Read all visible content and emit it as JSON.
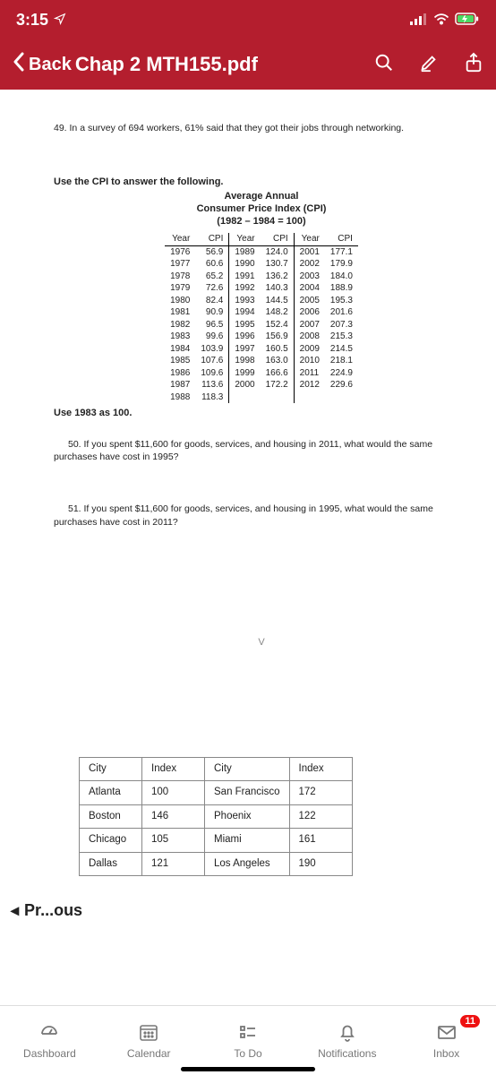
{
  "status": {
    "time": "3:15",
    "location_active": true
  },
  "nav": {
    "back_label": "Back",
    "title": "Chap 2 MTH155.pdf"
  },
  "doc": {
    "q49": "49. In a survey of 694 workers, 61% said that they got their jobs through networking.",
    "cpi_intro": "Use the CPI to answer the following.",
    "cpi_title_1": "Average Annual",
    "cpi_title_2": "Consumer Price Index (CPI)",
    "cpi_title_3": "(1982 – 1984 = 100)",
    "cpi_headers": [
      "Year",
      "CPI",
      "Year",
      "CPI",
      "Year",
      "CPI"
    ],
    "cpi_rows": [
      [
        "1976",
        "56.9",
        "1989",
        "124.0",
        "2001",
        "177.1"
      ],
      [
        "1977",
        "60.6",
        "1990",
        "130.7",
        "2002",
        "179.9"
      ],
      [
        "1978",
        "65.2",
        "1991",
        "136.2",
        "2003",
        "184.0"
      ],
      [
        "1979",
        "72.6",
        "1992",
        "140.3",
        "2004",
        "188.9"
      ],
      [
        "1980",
        "82.4",
        "1993",
        "144.5",
        "2005",
        "195.3"
      ],
      [
        "1981",
        "90.9",
        "1994",
        "148.2",
        "2006",
        "201.6"
      ],
      [
        "1982",
        "96.5",
        "1995",
        "152.4",
        "2007",
        "207.3"
      ],
      [
        "1983",
        "99.6",
        "1996",
        "156.9",
        "2008",
        "215.3"
      ],
      [
        "1984",
        "103.9",
        "1997",
        "160.5",
        "2009",
        "214.5"
      ],
      [
        "1985",
        "107.6",
        "1998",
        "163.0",
        "2010",
        "218.1"
      ],
      [
        "1986",
        "109.6",
        "1999",
        "166.6",
        "2011",
        "224.9"
      ],
      [
        "1987",
        "113.6",
        "2000",
        "172.2",
        "2012",
        "229.6"
      ],
      [
        "1988",
        "118.3",
        "",
        "",
        "",
        ""
      ]
    ],
    "use83": "Use 1983 as 100.",
    "q50": "50. If you spent $11,600 for goods, services, and housing in 2011, what would the same purchases have cost in 1995?",
    "q51": "51. If you spent $11,600 for goods, services, and housing in 1995, what would the same purchases have cost in 2011?",
    "caret": "V",
    "city_headers": [
      "City",
      "Index",
      "City",
      "Index"
    ],
    "city_rows": [
      [
        "Atlanta",
        "100",
        "San Francisco",
        "172"
      ],
      [
        "Boston",
        "146",
        "Phoenix",
        "122"
      ],
      [
        "Chicago",
        "105",
        "Miami",
        "161"
      ],
      [
        "Dallas",
        "121",
        "Los Angeles",
        "190"
      ]
    ]
  },
  "prev_button": "Pr...ous",
  "tabs": {
    "dashboard": "Dashboard",
    "calendar": "Calendar",
    "todo": "To Do",
    "notifications": "Notifications",
    "inbox": "Inbox",
    "inbox_badge": "11"
  }
}
